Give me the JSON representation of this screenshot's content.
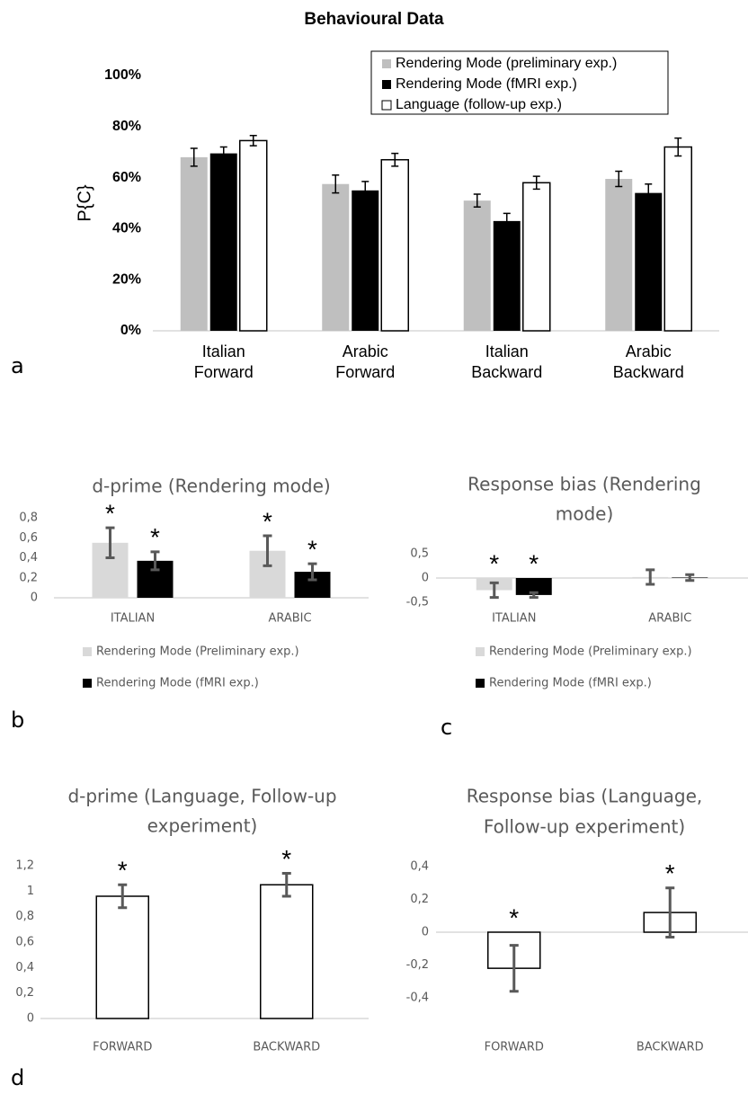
{
  "panel_labels": [
    "a",
    "b",
    "c",
    "d"
  ],
  "chart_data": [
    {
      "type": "bar",
      "title": [
        "Behavioural Data"
      ],
      "ylabel": "P{C}",
      "categories": [
        [
          "Italian",
          "Forward"
        ],
        [
          "Arabic",
          "Forward"
        ],
        [
          "Italian",
          "Backward"
        ],
        [
          "Arabic",
          "Backward"
        ]
      ],
      "series": [
        {
          "name": "Rendering Mode (preliminary exp.)",
          "color": "#bfbfbf",
          "values": [
            68,
            57.5,
            51,
            59.5
          ],
          "errors": [
            3.5,
            3.5,
            2.5,
            3
          ]
        },
        {
          "name": "Rendering Mode (fMRI exp.)",
          "color": "#000000",
          "values": [
            69.5,
            55,
            43,
            54
          ],
          "errors": [
            2.5,
            3.5,
            3,
            3.5
          ]
        },
        {
          "name": "Language (follow-up exp.)",
          "color": "#ffffff",
          "edgecolor": "#000000",
          "values": [
            74.5,
            67,
            58,
            72
          ],
          "errors": [
            2,
            2.5,
            2.5,
            3.5
          ]
        }
      ],
      "ylim": [
        0,
        100
      ],
      "yticks": [
        {
          "value": 0,
          "label": "0%"
        },
        {
          "value": 20,
          "label": "20%"
        },
        {
          "value": 40,
          "label": "40%"
        },
        {
          "value": 60,
          "label": "60%"
        },
        {
          "value": 80,
          "label": "80%"
        },
        {
          "value": 100,
          "label": "100%"
        }
      ],
      "legend": "upper right"
    },
    {
      "type": "bar",
      "title": [
        "d-prime (Rendering mode)"
      ],
      "categories": [
        "ITALIAN",
        "ARABIC"
      ],
      "series": [
        {
          "name": "Rendering Mode (Preliminary exp.)",
          "color": "#d9d9d9",
          "values": [
            0.55,
            0.47
          ],
          "errors": [
            0.15,
            0.15
          ],
          "significance": [
            "*",
            "*"
          ]
        },
        {
          "name": "Rendering Mode (fMRI exp.)",
          "color": "#000000",
          "values": [
            0.37,
            0.26
          ],
          "errors": [
            0.09,
            0.08
          ],
          "significance": [
            "*",
            "*"
          ]
        }
      ],
      "ylim": [
        0,
        0.8
      ],
      "yticks": [
        0,
        {
          "value": 0.2,
          "label": "0,2"
        },
        {
          "value": 0.4,
          "label": "0,4"
        },
        {
          "value": 0.6,
          "label": "0,6"
        },
        {
          "value": 0.8,
          "label": "0,8"
        }
      ],
      "legend": "bottom"
    },
    {
      "type": "bar",
      "title": [
        "Response bias (Rendering",
        "mode)"
      ],
      "categories": [
        "ITALIAN",
        "ARABIC"
      ],
      "series": [
        {
          "name": "Rendering Mode (Preliminary exp.)",
          "color": "#d9d9d9",
          "values": [
            -0.25,
            0.02
          ],
          "errors": [
            0.15,
            0.15
          ],
          "significance": [
            "*",
            null
          ]
        },
        {
          "name": "Rendering Mode (fMRI exp.)",
          "color": "#000000",
          "values": [
            -0.35,
            0.01
          ],
          "errors": [
            0.05,
            0.06
          ],
          "significance": [
            "*",
            null
          ]
        }
      ],
      "ylim": [
        -0.5,
        0.5
      ],
      "yticks": [
        {
          "value": -0.5,
          "label": "-0,5"
        },
        0,
        {
          "value": 0.5,
          "label": "0,5"
        }
      ],
      "legend": "bottom"
    },
    {
      "type": "bar",
      "title": [
        "d-prime (Language, Follow-up",
        "experiment)"
      ],
      "categories": [
        "FORWARD",
        "BACKWARD"
      ],
      "series": [
        {
          "color": "#ffffff",
          "edgecolor": "#000000",
          "values": [
            0.96,
            1.05
          ],
          "errors": [
            0.09,
            0.09
          ],
          "significance": [
            "*",
            "*"
          ]
        }
      ],
      "ylim": [
        0,
        1.2
      ],
      "yticks": [
        0,
        {
          "value": 0.2,
          "label": "0,2"
        },
        {
          "value": 0.4,
          "label": "0,4"
        },
        {
          "value": 0.6,
          "label": "0,6"
        },
        {
          "value": 0.8,
          "label": "0,8"
        },
        1,
        {
          "value": 1.2,
          "label": "1,2"
        }
      ]
    },
    {
      "type": "bar",
      "title": [
        "Response bias (Language,",
        "Follow-up experiment)"
      ],
      "categories": [
        "FORWARD",
        "BACKWARD"
      ],
      "series": [
        {
          "color": "#ffffff",
          "edgecolor": "#000000",
          "values": [
            -0.22,
            0.12
          ],
          "errors": [
            0.14,
            0.15
          ],
          "significance": [
            "*",
            "*"
          ]
        }
      ],
      "ylim": [
        -0.4,
        0.4
      ],
      "yticks": [
        {
          "value": -0.4,
          "label": "-0,4"
        },
        {
          "value": -0.2,
          "label": "-0,2"
        },
        0,
        {
          "value": 0.2,
          "label": "0,2"
        },
        {
          "value": 0.4,
          "label": "0,4"
        }
      ]
    }
  ]
}
